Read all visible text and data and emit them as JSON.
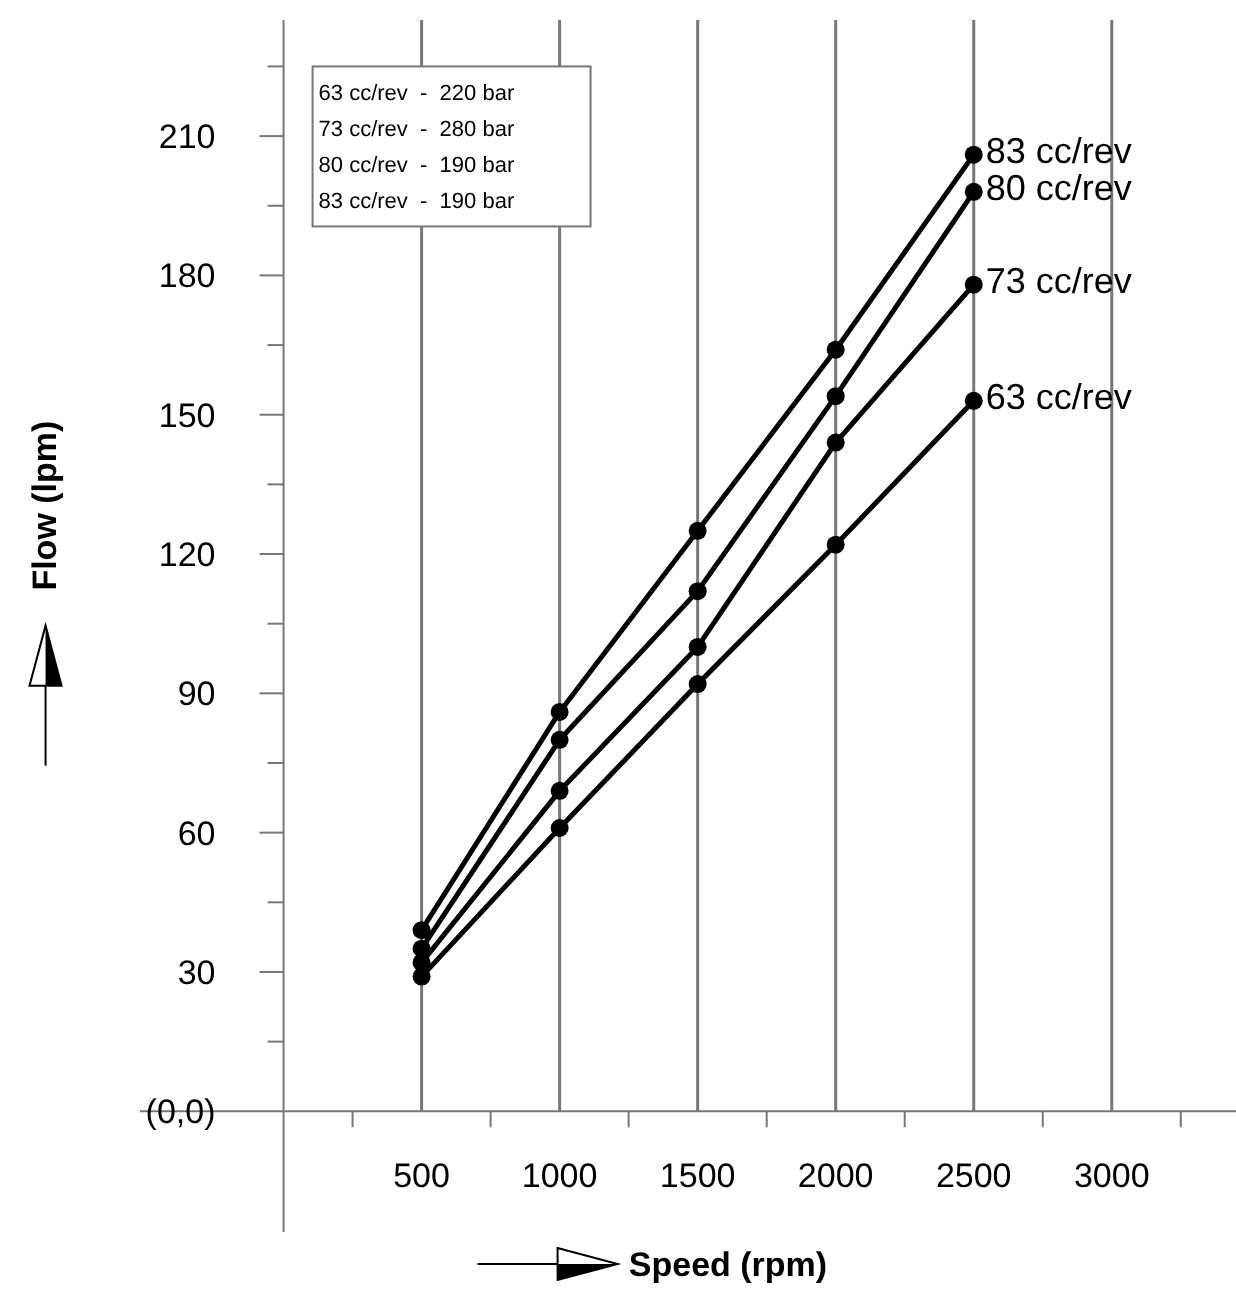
{
  "chart_data": {
    "type": "line",
    "xlabel": "Speed (rpm)",
    "ylabel": "Flow (lpm)",
    "x": [
      500,
      1000,
      1500,
      2000,
      2500
    ],
    "series": [
      {
        "name": "63 cc/rev",
        "color": "#000000",
        "values": [
          29,
          61,
          92,
          122,
          153
        ]
      },
      {
        "name": "73 cc/rev",
        "color": "#000000",
        "values": [
          32,
          69,
          100,
          144,
          178
        ]
      },
      {
        "name": "80 cc/rev",
        "color": "#000000",
        "values": [
          35,
          80,
          112,
          154,
          198
        ]
      },
      {
        "name": "83 cc/rev",
        "color": "#000000",
        "values": [
          39,
          86,
          125,
          164,
          206
        ]
      }
    ],
    "xlim": [
      -520,
      3450
    ],
    "xticks": [
      {
        "value": 250,
        "label": null
      },
      500,
      {
        "value": 750,
        "label": null
      },
      1000,
      {
        "value": 1250,
        "label": null
      },
      1500,
      {
        "value": 1750,
        "label": null
      },
      2000,
      {
        "value": 2250,
        "label": null
      },
      2500,
      {
        "value": 2750,
        "label": null
      },
      3000,
      {
        "value": 3250,
        "label": null
      }
    ],
    "ylim": [
      -26,
      235
    ],
    "yticks": [
      {
        "value": 0,
        "label": "(0,0)"
      },
      {
        "value": 15,
        "label": null
      },
      30,
      {
        "value": 45,
        "label": null
      },
      60,
      {
        "value": 75,
        "label": null
      },
      90,
      {
        "value": 105,
        "label": null
      },
      120,
      {
        "value": 135,
        "label": null
      },
      150,
      {
        "value": 165,
        "label": null
      },
      180,
      {
        "value": 195,
        "label": null
      },
      210,
      {
        "value": 225,
        "label": null
      }
    ],
    "grid": "x",
    "legend": false,
    "marker": "circle",
    "line_style": "solid",
    "annotations": [
      "63 cc/rev  -  220 bar",
      "73 cc/rev  -  280 bar",
      "80 cc/rev  -  190 bar",
      "83 cc/rev  -  190 bar"
    ]
  }
}
